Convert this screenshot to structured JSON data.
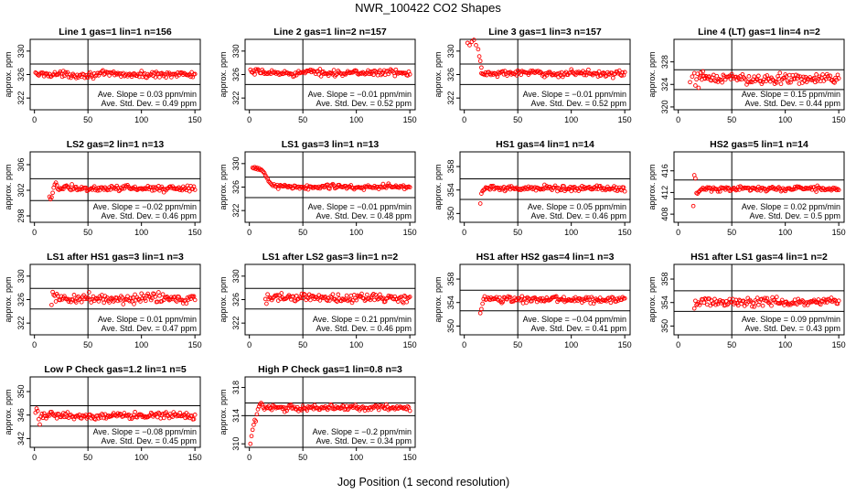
{
  "figure": {
    "title": "NWR_100422  CO2 Shapes",
    "xlabel": "Jog Position (1 second resolution)"
  },
  "chart_data": [
    {
      "type": "scatter",
      "title": "Line 1 gas=1 lin=1 n=156",
      "ylabel": "approx. ppm",
      "xlim": [
        -4,
        155
      ],
      "ylim": [
        320,
        332
      ],
      "yticks": [
        322,
        326,
        330
      ],
      "xticks": [
        0,
        50,
        100,
        150
      ],
      "vline": 50,
      "hlines": [
        327.8,
        324.3
      ],
      "slope_text": "Ave. Slope =  0.03  ppm/min",
      "stddev_text": "Ave. Std. Dev. =  0.49  ppm",
      "base": 326.0,
      "noise": 0.25,
      "xstart": 1,
      "xend": 150,
      "transient": []
    },
    {
      "type": "scatter",
      "title": "Line 2 gas=1 lin=2 n=157",
      "ylabel": "approx. ppm",
      "xlim": [
        -4,
        155
      ],
      "ylim": [
        320,
        332
      ],
      "yticks": [
        322,
        326,
        330
      ],
      "xticks": [
        0,
        50,
        100,
        150
      ],
      "vline": 50,
      "hlines": [
        327.8,
        324.3
      ],
      "slope_text": "Ave. Slope = −0.01  ppm/min",
      "stddev_text": "Ave. Std. Dev. =  0.52  ppm",
      "base": 326.3,
      "noise": 0.25,
      "xstart": 1,
      "xend": 150,
      "transient": []
    },
    {
      "type": "scatter",
      "title": "Line 3 gas=1 lin=3 n=157",
      "ylabel": "approx. ppm",
      "xlim": [
        -4,
        155
      ],
      "ylim": [
        320,
        332
      ],
      "yticks": [
        322,
        326,
        330
      ],
      "xticks": [
        0,
        50,
        100,
        150
      ],
      "vline": 50,
      "hlines": [
        327.8,
        324.3
      ],
      "slope_text": "Ave. Slope = −0.01  ppm/min",
      "stddev_text": "Ave. Std. Dev. =  0.52  ppm",
      "base": 326.2,
      "noise": 0.25,
      "xstart": 16,
      "xend": 150,
      "transient": [
        [
          3,
          331.4
        ],
        [
          5,
          331.0
        ],
        [
          7,
          331.6
        ],
        [
          9,
          331.9
        ],
        [
          11,
          331.0
        ],
        [
          13,
          330.3
        ],
        [
          14,
          329.1
        ],
        [
          15,
          328.3
        ],
        [
          16,
          327.2
        ]
      ]
    },
    {
      "type": "scatter",
      "title": "Line 4 (LT) gas=1 lin=4 n=2",
      "ylabel": "approx. ppm",
      "xlim": [
        -4,
        155
      ],
      "ylim": [
        319.5,
        332
      ],
      "yticks": [
        320,
        324,
        328
      ],
      "xticks": [
        0,
        50,
        100,
        150
      ],
      "vline": 50,
      "hlines": [
        326.6,
        323.1
      ],
      "slope_text": "Ave. Slope =  0.15  ppm/min",
      "stddev_text": "Ave. Std. Dev. =  0.44  ppm",
      "base": 325.0,
      "noise": 0.45,
      "xstart": 20,
      "xend": 150,
      "transient": [
        [
          11,
          324.4
        ],
        [
          13,
          325.4
        ],
        [
          15,
          326.0
        ],
        [
          16,
          323.8
        ],
        [
          17,
          324.9
        ],
        [
          18,
          325.9
        ],
        [
          19,
          323.4
        ],
        [
          21,
          326.1
        ],
        [
          23,
          326.3
        ],
        [
          25,
          325.1
        ]
      ]
    },
    {
      "type": "scatter",
      "title": "LS2 gas=2 lin=1 n=13",
      "ylabel": "approx. ppm",
      "xlim": [
        -4,
        155
      ],
      "ylim": [
        297,
        308
      ],
      "yticks": [
        298,
        302,
        306
      ],
      "xticks": [
        0,
        50,
        100,
        150
      ],
      "vline": 50,
      "hlines": [
        303.8,
        300.4
      ],
      "slope_text": "Ave. Slope = −0.02  ppm/min",
      "stddev_text": "Ave. Std. Dev. =  0.46  ppm",
      "base": 302.3,
      "noise": 0.22,
      "xstart": 22,
      "xend": 150,
      "transient": [
        [
          14,
          301.0
        ],
        [
          15,
          300.6
        ],
        [
          16,
          300.9
        ],
        [
          17,
          301.6
        ],
        [
          18,
          302.4
        ],
        [
          19,
          302.9
        ],
        [
          20,
          303.2
        ],
        [
          21,
          302.8
        ]
      ]
    },
    {
      "type": "scatter",
      "title": "LS1 gas=3 lin=1 n=13",
      "ylabel": "approx. ppm",
      "xlim": [
        -4,
        155
      ],
      "ylim": [
        320,
        332
      ],
      "yticks": [
        322,
        326,
        330
      ],
      "xticks": [
        0,
        50,
        100,
        150
      ],
      "vline": 50,
      "hlines": [
        327.7,
        324.2
      ],
      "slope_text": "Ave. Slope = −0.01  ppm/min",
      "stddev_text": "Ave. Std. Dev. =  0.48  ppm",
      "base": 326.0,
      "noise": 0.22,
      "xstart": 23,
      "xend": 150,
      "transient": [
        [
          3,
          329.3
        ],
        [
          4,
          329.2
        ],
        [
          5,
          329.4
        ],
        [
          6,
          329.1
        ],
        [
          7,
          329.3
        ],
        [
          8,
          329.0
        ],
        [
          9,
          329.2
        ],
        [
          10,
          328.9
        ],
        [
          11,
          329.0
        ],
        [
          12,
          328.8
        ],
        [
          13,
          328.6
        ],
        [
          14,
          328.4
        ],
        [
          15,
          328.0
        ],
        [
          16,
          327.7
        ],
        [
          17,
          327.4
        ],
        [
          18,
          327.0
        ],
        [
          19,
          326.8
        ],
        [
          20,
          326.6
        ],
        [
          21,
          326.4
        ],
        [
          22,
          326.2
        ]
      ]
    },
    {
      "type": "scatter",
      "title": "HS1 gas=4 lin=1 n=14",
      "ylabel": "approx. ppm",
      "xlim": [
        -4,
        155
      ],
      "ylim": [
        348.5,
        360.5
      ],
      "yticks": [
        350,
        354,
        358
      ],
      "xticks": [
        0,
        50,
        100,
        150
      ],
      "vline": 50,
      "hlines": [
        355.9,
        352.4
      ],
      "slope_text": "Ave. Slope =  0.05  ppm/min",
      "stddev_text": "Ave. Std. Dev. =  0.46  ppm",
      "base": 354.3,
      "noise": 0.22,
      "xstart": 20,
      "xend": 150,
      "transient": [
        [
          15,
          351.7
        ],
        [
          16,
          353.4
        ],
        [
          17,
          353.8
        ],
        [
          18,
          354.0
        ],
        [
          19,
          354.1
        ]
      ]
    },
    {
      "type": "scatter",
      "title": "HS2 gas=5 lin=1 n=14",
      "ylabel": "approx. ppm",
      "xlim": [
        -4,
        155
      ],
      "ylim": [
        406.5,
        419.5
      ],
      "yticks": [
        408,
        412,
        416
      ],
      "xticks": [
        0,
        50,
        100,
        150
      ],
      "vline": 50,
      "hlines": [
        414.3,
        410.8
      ],
      "slope_text": "Ave. Slope =  0.02  ppm/min",
      "stddev_text": "Ave. Std. Dev. =  0.5  ppm",
      "base": 412.7,
      "noise": 0.22,
      "xstart": 23,
      "xend": 150,
      "transient": [
        [
          14,
          409.5
        ],
        [
          15,
          415.2
        ],
        [
          16,
          414.6
        ],
        [
          17,
          411.9
        ],
        [
          18,
          411.8
        ],
        [
          19,
          412.1
        ],
        [
          20,
          412.3
        ],
        [
          21,
          412.5
        ],
        [
          22,
          412.6
        ]
      ]
    },
    {
      "type": "scatter",
      "title": "LS1 after HS1 gas=3 lin=1 n=3",
      "ylabel": "approx. ppm",
      "xlim": [
        -4,
        155
      ],
      "ylim": [
        320,
        332
      ],
      "yticks": [
        322,
        326,
        330
      ],
      "xticks": [
        0,
        50,
        100,
        150
      ],
      "vline": 50,
      "hlines": [
        327.9,
        324.4
      ],
      "slope_text": "Ave. Slope =  0.01  ppm/min",
      "stddev_text": "Ave. Std. Dev. =  0.47  ppm",
      "base": 326.2,
      "noise": 0.4,
      "xstart": 19,
      "xend": 150,
      "transient": [
        [
          16,
          325.1
        ],
        [
          17,
          327.3
        ],
        [
          18,
          326.8
        ]
      ]
    },
    {
      "type": "scatter",
      "title": "LS1 after LS2 gas=3 lin=1 n=2",
      "ylabel": "approx. ppm",
      "xlim": [
        -4,
        155
      ],
      "ylim": [
        320,
        332
      ],
      "yticks": [
        322,
        326,
        330
      ],
      "xticks": [
        0,
        50,
        100,
        150
      ],
      "vline": 50,
      "hlines": [
        327.9,
        324.4
      ],
      "slope_text": "Ave. Slope =  0.21  ppm/min",
      "stddev_text": "Ave. Std. Dev. =  0.46  ppm",
      "base": 326.3,
      "noise": 0.4,
      "xstart": 18,
      "xend": 150,
      "transient": [
        [
          15,
          326.1
        ],
        [
          16,
          325.3
        ],
        [
          17,
          326.9
        ]
      ]
    },
    {
      "type": "scatter",
      "title": "HS1 after HS2 gas=4 lin=1 n=3",
      "ylabel": "approx. ppm",
      "xlim": [
        -4,
        155
      ],
      "ylim": [
        348.5,
        360.5
      ],
      "yticks": [
        350,
        354,
        358
      ],
      "xticks": [
        0,
        50,
        100,
        150
      ],
      "vline": 50,
      "hlines": [
        356.1,
        352.6
      ],
      "slope_text": "Ave. Slope = −0.04  ppm/min",
      "stddev_text": "Ave. Std. Dev. =  0.41  ppm",
      "base": 354.5,
      "noise": 0.25,
      "xstart": 19,
      "xend": 150,
      "transient": [
        [
          15,
          352.2
        ],
        [
          16,
          352.9
        ],
        [
          17,
          353.8
        ],
        [
          18,
          354.6
        ]
      ]
    },
    {
      "type": "scatter",
      "title": "HS1 after LS1 gas=4 lin=1 n=2",
      "ylabel": "approx. ppm",
      "xlim": [
        -4,
        155
      ],
      "ylim": [
        348.5,
        360.5
      ],
      "yticks": [
        350,
        354,
        358
      ],
      "xticks": [
        0,
        50,
        100,
        150
      ],
      "vline": 50,
      "hlines": [
        356.0,
        352.5
      ],
      "slope_text": "Ave. Slope =  0.09  ppm/min",
      "stddev_text": "Ave. Std. Dev. =  0.43  ppm",
      "base": 354.1,
      "noise": 0.35,
      "xstart": 18,
      "xend": 150,
      "transient": [
        [
          15,
          353.0
        ],
        [
          16,
          354.3
        ],
        [
          17,
          353.6
        ]
      ]
    },
    {
      "type": "scatter",
      "title": "Low P Check gas=1.2 lin=1 n=5",
      "ylabel": "approx. ppm",
      "xlim": [
        -4,
        155
      ],
      "ylim": [
        340.5,
        352.5
      ],
      "yticks": [
        342,
        346,
        350
      ],
      "xticks": [
        0,
        50,
        100,
        150
      ],
      "vline": 50,
      "hlines": [
        347.6,
        344.1
      ],
      "slope_text": "Ave. Slope = −0.08  ppm/min",
      "stddev_text": "Ave. Std. Dev. =  0.45  ppm",
      "base": 345.9,
      "noise": 0.25,
      "xstart": 6,
      "xend": 150,
      "transient": [
        [
          1,
          346.4
        ],
        [
          2,
          347.1
        ],
        [
          3,
          346.7
        ],
        [
          4,
          345.3
        ],
        [
          5,
          344.4
        ]
      ]
    },
    {
      "type": "scatter",
      "title": "High P Check gas=1 lin=0.8 n=3",
      "ylabel": "approx. ppm",
      "xlim": [
        -4,
        155
      ],
      "ylim": [
        309.5,
        319.5
      ],
      "yticks": [
        310,
        314,
        318
      ],
      "xticks": [
        0,
        50,
        100,
        150
      ],
      "vline": 50,
      "hlines": [
        315.8,
        314.0
      ],
      "slope_text": "Ave. Slope = −0.2  ppm/min",
      "stddev_text": "Ave. Std. Dev. =  0.34  ppm",
      "base": 315.1,
      "noise": 0.2,
      "xstart": 13,
      "xend": 150,
      "transient": [
        [
          1,
          310.0
        ],
        [
          2,
          311.1
        ],
        [
          3,
          312.0
        ],
        [
          4,
          312.7
        ],
        [
          5,
          313.4
        ],
        [
          6,
          313.2
        ],
        [
          7,
          314.2
        ],
        [
          8,
          314.9
        ],
        [
          9,
          315.3
        ],
        [
          10,
          315.6
        ],
        [
          11,
          315.8
        ],
        [
          12,
          315.6
        ]
      ]
    }
  ]
}
